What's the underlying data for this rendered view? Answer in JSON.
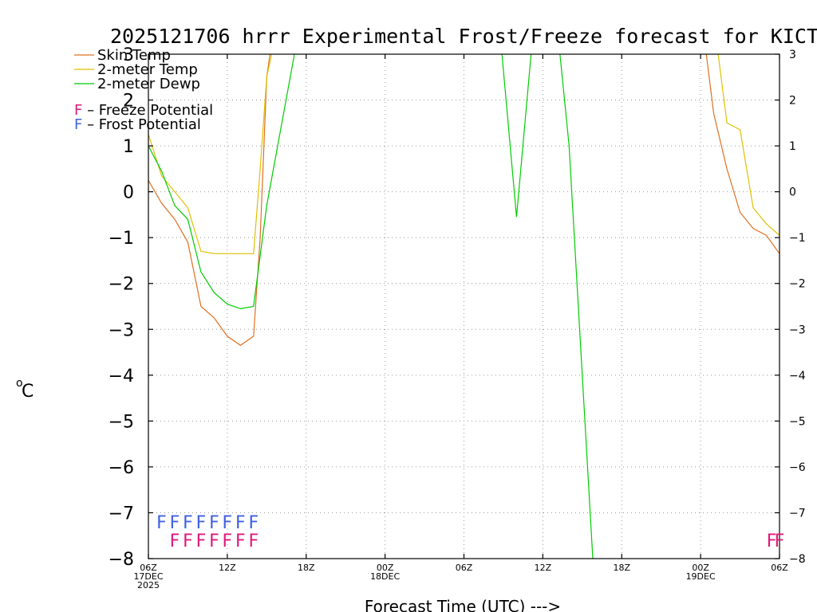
{
  "chart_data": {
    "type": "line",
    "title": "2025121706 hrrr Experimental Frost/Freeze forecast for KICT",
    "xlabel": "Forecast Time (UTC) --->",
    "ylabel_unit": "°C",
    "ylabel_degree": "o",
    "ylabel_letter": "C",
    "ylim": [
      -8,
      3
    ],
    "xlim": [
      0,
      48
    ],
    "grid": true,
    "y_ticks": [
      3,
      2,
      1,
      0,
      -1,
      -2,
      -3,
      -4,
      -5,
      -6,
      -7,
      -8
    ],
    "y_tick_labels": [
      "3",
      "2",
      "1",
      "0",
      "−1",
      "−2",
      "−3",
      "−4",
      "−5",
      "−6",
      "−7",
      "−8"
    ],
    "x_ticks": [
      {
        "h": 0,
        "line1": "06Z",
        "line2": "17DEC",
        "line3": "2025"
      },
      {
        "h": 6,
        "line1": "12Z"
      },
      {
        "h": 12,
        "line1": "18Z"
      },
      {
        "h": 18,
        "line1": "00Z",
        "line2": "18DEC"
      },
      {
        "h": 24,
        "line1": "06Z"
      },
      {
        "h": 30,
        "line1": "12Z"
      },
      {
        "h": 36,
        "line1": "18Z"
      },
      {
        "h": 42,
        "line1": "00Z",
        "line2": "19DEC"
      },
      {
        "h": 48,
        "line1": "06Z"
      }
    ],
    "series": [
      {
        "name": "Skin Temp",
        "color": "#e07020",
        "segments": [
          [
            [
              0,
              0.25
            ],
            [
              1,
              -0.25
            ],
            [
              2,
              -0.6
            ],
            [
              3,
              -1.1
            ],
            [
              4,
              -2.5
            ],
            [
              5,
              -2.75
            ],
            [
              6,
              -3.15
            ],
            [
              7,
              -3.35
            ],
            [
              8,
              -3.15
            ],
            [
              8.5,
              -1.0
            ],
            [
              9,
              2.5
            ],
            [
              9.4,
              3.3
            ]
          ],
          [
            [
              42.3,
              3.3
            ],
            [
              43,
              1.7
            ],
            [
              44,
              0.5
            ],
            [
              45,
              -0.45
            ],
            [
              46,
              -0.8
            ],
            [
              47,
              -0.95
            ],
            [
              48,
              -1.35
            ]
          ]
        ]
      },
      {
        "name": "2-meter Temp",
        "color": "#e0c000",
        "segments": [
          [
            [
              0,
              1.25
            ],
            [
              1,
              0.35
            ],
            [
              2,
              0.0
            ],
            [
              3,
              -0.35
            ],
            [
              4,
              -1.3
            ],
            [
              5,
              -1.35
            ],
            [
              6,
              -1.35
            ],
            [
              7,
              -1.35
            ],
            [
              8,
              -1.35
            ],
            [
              8.5,
              0.5
            ],
            [
              9,
              2.5
            ],
            [
              9.6,
              3.3
            ]
          ],
          [
            [
              43.2,
              3.3
            ],
            [
              44,
              1.5
            ],
            [
              45,
              1.35
            ],
            [
              46,
              -0.35
            ],
            [
              47,
              -0.7
            ],
            [
              48,
              -0.95
            ]
          ]
        ]
      },
      {
        "name": "2-meter Dewp",
        "color": "#00cc00",
        "segments": [
          [
            [
              0,
              1.0
            ],
            [
              1,
              0.45
            ],
            [
              2,
              -0.3
            ],
            [
              3,
              -0.6
            ],
            [
              4,
              -1.75
            ],
            [
              5,
              -2.2
            ],
            [
              6,
              -2.45
            ],
            [
              7,
              -2.55
            ],
            [
              8,
              -2.5
            ],
            [
              9,
              -0.3
            ],
            [
              11.3,
              3.3
            ]
          ],
          [
            [
              26.8,
              3.3
            ],
            [
              28,
              -0.55
            ],
            [
              29.2,
              3.3
            ]
          ],
          [
            [
              31.2,
              3.3
            ],
            [
              32,
              1.0
            ],
            [
              34,
              -9.0
            ]
          ]
        ]
      }
    ],
    "legend": [
      {
        "label": "Skin Temp",
        "color": "#e07020"
      },
      {
        "label": "2-meter Temp",
        "color": "#e0c000"
      },
      {
        "label": "2-meter Dewp",
        "color": "#00cc00"
      }
    ],
    "potential_legend": [
      {
        "glyph": "F",
        "label": " – Freeze Potential",
        "color": "#e0197a"
      },
      {
        "glyph": "F",
        "label": " – Frost Potential",
        "color": "#4060e0"
      }
    ],
    "frost_marks": {
      "text": "F",
      "color": "#4060e0",
      "y": -7.2,
      "hours": [
        1,
        2,
        3,
        4,
        5,
        6,
        7,
        8
      ]
    },
    "freeze_marks": {
      "text": "F",
      "color": "#e0197a",
      "y": -7.6,
      "hours": [
        2,
        3,
        4,
        5,
        6,
        7,
        8,
        47.4,
        48
      ]
    }
  }
}
